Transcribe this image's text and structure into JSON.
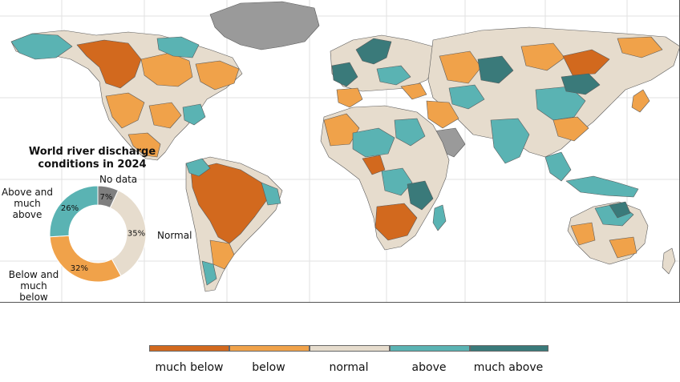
{
  "title_line1": "World river discharge",
  "title_line2": "conditions in 2024",
  "donut": {
    "segments": [
      {
        "key": "no_data",
        "label": "No data",
        "value": 7,
        "pct_label": "7%",
        "color": "#7f7f7f"
      },
      {
        "key": "normal",
        "label": "Normal",
        "value": 35,
        "pct_label": "35%",
        "color": "#e6dccd"
      },
      {
        "key": "below",
        "label_line1": "Below and",
        "label_line2": "much below",
        "value": 32,
        "pct_label": "32%",
        "color": "#f0a24a"
      },
      {
        "key": "above",
        "label_line1": "Above and",
        "label_line2": "much above",
        "value": 26,
        "pct_label": "26%",
        "color": "#5ab3b3"
      }
    ]
  },
  "legend": [
    {
      "label": "much below",
      "color": "#d2691e"
    },
    {
      "label": "below",
      "color": "#f0a24a"
    },
    {
      "label": "normal",
      "color": "#e6dccd"
    },
    {
      "label": "above",
      "color": "#5ab3b3"
    },
    {
      "label": "much above",
      "color": "#3a7a7a"
    }
  ],
  "colors": {
    "ocean": "#ffffff",
    "no_data_land": "#9a9a9a",
    "border": "#5a5a5a",
    "graticule": "#e2e2e2"
  }
}
